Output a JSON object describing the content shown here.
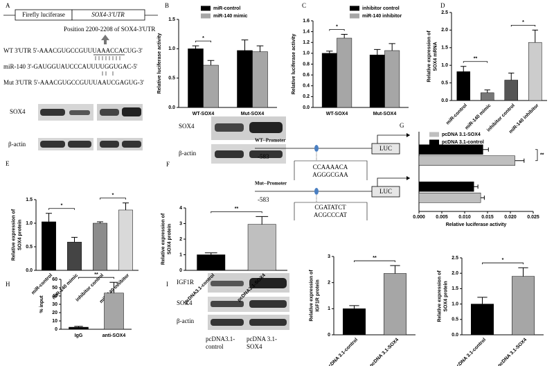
{
  "panel_labels": [
    "A",
    "B",
    "C",
    "D",
    "E",
    "F",
    "G",
    "H",
    "I"
  ],
  "construct": {
    "left": "Firefly luciferase",
    "right": "SOX4-3'UTR",
    "position": "Position 2200-2208 of SOX4-3'UTR",
    "sequences": [
      "WT 3'UTR 5'-AAACGUGCCGUUUAAACCACUG-3'",
      "miR-140   3'-GAUGGUAUCCCAUUUUGGUGAC-5'",
      "Mut 3'UTR 5'-AAACGUGCCGUUUAAUCGAGUG-3'"
    ]
  },
  "blots": {
    "e": [
      "SOX4",
      "β-actin"
    ],
    "f": [
      "SOX4",
      "β-actin"
    ],
    "i": {
      "rows": [
        "IGF1R",
        "SOX4",
        "β-actin"
      ],
      "lanes": [
        [
          "pcDNA3.1-",
          "control"
        ],
        [
          "pcDNA 3.1-",
          "SOX4"
        ]
      ]
    }
  },
  "promoter": {
    "start": [
      "-583",
      "-583"
    ],
    "reporter": [
      "LUC",
      "LUC"
    ],
    "sites": [
      [
        "CCAAAACA",
        "AGGGCGAA"
      ],
      [
        "CGATATCT",
        "ACGCCCAT"
      ]
    ]
  },
  "chart_data": [
    {
      "type": "bar",
      "ylabel": [
        "Relative luciferase activity"
      ],
      "categories": [
        "WT-SOX4",
        "Mut-SOX4"
      ],
      "series": [
        {
          "name": "miR-control",
          "color": "#000000",
          "values": [
            1.0,
            0.97
          ],
          "errors": [
            0.05,
            0.18
          ]
        },
        {
          "name": "miR-140 mimic",
          "color": "#a6a6a6",
          "values": [
            0.72,
            0.95
          ],
          "errors": [
            0.08,
            0.1
          ]
        }
      ],
      "ylim": [
        0,
        1.5
      ],
      "yticks": [
        {
          "value": 0,
          "label": "0.0"
        },
        0.5,
        {
          "value": 1,
          "label": "1.0"
        },
        1.5
      ],
      "legend": "top",
      "comparisons": [
        {
          "text": "*",
          "from": [
            0,
            0
          ],
          "to": [
            0,
            1
          ]
        }
      ]
    },
    {
      "type": "bar",
      "ylabel": [
        "Relative luciferase activity"
      ],
      "categories": [
        "WT-SOX4",
        "Mut-SOX4"
      ],
      "series": [
        {
          "name": "inhibitor control",
          "color": "#000000",
          "values": [
            1.0,
            0.97
          ],
          "errors": [
            0.04,
            0.1
          ]
        },
        {
          "name": "miR-140 inhibitor",
          "color": "#a6a6a6",
          "values": [
            1.28,
            1.05
          ],
          "errors": [
            0.07,
            0.13
          ]
        }
      ],
      "ylim": [
        0,
        1.6
      ],
      "yticks": [
        {
          "value": 0,
          "label": "0.0"
        },
        0.2,
        0.4,
        0.6,
        0.8,
        {
          "value": 1,
          "label": "1.0"
        },
        1.2,
        1.4,
        1.6
      ],
      "legend": "top",
      "comparisons": [
        {
          "text": "*",
          "from": [
            0,
            0
          ],
          "to": [
            0,
            1
          ]
        }
      ]
    },
    {
      "type": "bar",
      "ylabel": [
        "Relative expression of",
        "SOX4 mRNA"
      ],
      "categories": [
        "miR-control",
        "miR-140 mimic",
        "inhibitor control",
        "miR-140 inhibitor"
      ],
      "series": [
        {
          "colors": [
            "#000000",
            "#777777",
            "#555555",
            "#cccccc"
          ],
          "values": [
            0.82,
            0.22,
            0.58,
            1.65
          ],
          "errors": [
            0.15,
            0.08,
            0.2,
            0.35
          ]
        }
      ],
      "ylim": [
        0,
        2.5
      ],
      "yticks": [
        {
          "value": 0,
          "label": "0.0"
        },
        0.5,
        {
          "value": 1,
          "label": "1.0"
        },
        1.5,
        {
          "value": 2,
          "label": "2.0"
        },
        2.5
      ],
      "comparisons": [
        {
          "text": "**",
          "from": [
            0,
            0
          ],
          "to": [
            1,
            0
          ]
        },
        {
          "text": "*",
          "from": [
            2,
            0
          ],
          "to": [
            3,
            0
          ]
        }
      ]
    },
    {
      "type": "bar",
      "ylabel": [
        "Relative expression of",
        "SOX4 protein"
      ],
      "categories": [
        "miR-control",
        "miR-140 mimic",
        "inhibitor control",
        "miR-140 inhibitor"
      ],
      "series": [
        {
          "colors": [
            "#000000",
            "#444444",
            "#8c8c8c",
            "#d9d9d9"
          ],
          "values": [
            1.03,
            0.6,
            1.0,
            1.28
          ],
          "errors": [
            0.18,
            0.1,
            0.03,
            0.15
          ]
        }
      ],
      "ylim": [
        0,
        1.5
      ],
      "yticks": [
        {
          "value": 0,
          "label": "0.0"
        },
        0.5,
        {
          "value": 1,
          "label": "1.0"
        },
        1.5
      ],
      "comparisons": [
        {
          "text": "*",
          "from": [
            0,
            0
          ],
          "to": [
            1,
            0
          ]
        },
        {
          "text": "*",
          "from": [
            2,
            0
          ],
          "to": [
            3,
            0
          ]
        }
      ]
    },
    {
      "type": "bar",
      "ylabel": [
        "Relative expression of",
        "SOX4 protein"
      ],
      "categories": [
        "pcDNA3.1-control",
        "pcDNA3.1-SOX4"
      ],
      "series": [
        {
          "colors": [
            "#000000",
            "#bfbfbf"
          ],
          "values": [
            1.0,
            2.95
          ],
          "errors": [
            0.12,
            0.5
          ]
        }
      ],
      "ylim": [
        0,
        4
      ],
      "yticks": [
        0,
        1,
        2,
        3,
        4
      ],
      "comparisons": [
        {
          "text": "**",
          "from": [
            0,
            0
          ],
          "to": [
            1,
            0
          ]
        }
      ]
    },
    {
      "type": "barh",
      "xlabel": "Relative luciferase activity",
      "categories": [
        "WT--Promoter",
        "Mut--Promoter"
      ],
      "series": [
        {
          "name": "pcDNA 3.1-SOX4",
          "color": "#bfbfbf",
          "values": [
            0.021,
            0.0135
          ],
          "errors": [
            0.002,
            0.0008
          ]
        },
        {
          "name": "pcDNA 3.1-control",
          "color": "#000000",
          "values": [
            0.014,
            0.012
          ],
          "errors": [
            0.0012,
            0.0009
          ]
        }
      ],
      "xlim": [
        0,
        0.025
      ],
      "xticks": [
        {
          "value": 0,
          "label": "0.000"
        },
        {
          "value": 0.005,
          "label": "0.005"
        },
        {
          "value": 0.01,
          "label": "0.010"
        },
        {
          "value": 0.015,
          "label": "0.015"
        },
        {
          "value": 0.02,
          "label": "0.020"
        },
        {
          "value": 0.025,
          "label": "0.025"
        }
      ],
      "legend": "top",
      "comparisons": [
        {
          "text": "**",
          "from": [
            0,
            0
          ],
          "to": [
            0,
            1
          ]
        }
      ]
    },
    {
      "type": "bar",
      "ylabel": [
        "% input"
      ],
      "categories": [
        "IgG",
        "anti-SOX4"
      ],
      "series": [
        {
          "colors": [
            "#000000",
            "#a6a6a6"
          ],
          "values": [
            2.5,
            43.5
          ],
          "errors": [
            1,
            13
          ]
        }
      ],
      "ylim": [
        0,
        60
      ],
      "yticks": [
        0,
        10,
        20,
        30,
        40,
        50,
        60
      ],
      "comparisons": [
        {
          "text": "**",
          "from": [
            0,
            0
          ],
          "to": [
            1,
            0
          ]
        }
      ]
    },
    {
      "type": "bar",
      "ylabel": [
        "Relative expression of",
        "IGF1R protein"
      ],
      "categories": [
        "pcDNA 3.1-control",
        "pcDNA 3.1-SOX4"
      ],
      "series": [
        {
          "colors": [
            "#000000",
            "#a6a6a6"
          ],
          "values": [
            1.0,
            2.35
          ],
          "errors": [
            0.12,
            0.3
          ]
        }
      ],
      "ylim": [
        0,
        3
      ],
      "yticks": [
        0,
        1,
        2,
        3
      ],
      "comparisons": [
        {
          "text": "**",
          "from": [
            0,
            0
          ],
          "to": [
            1,
            0
          ]
        }
      ]
    },
    {
      "type": "bar",
      "ylabel": [
        "Relative expression of",
        "SOX4 protein"
      ],
      "categories": [
        "pcDNA 3.1-control",
        "pcDNA 3.1-SOX4"
      ],
      "series": [
        {
          "colors": [
            "#000000",
            "#a6a6a6"
          ],
          "values": [
            1.0,
            1.9
          ],
          "errors": [
            0.22,
            0.28
          ]
        }
      ],
      "ylim": [
        0,
        2.5
      ],
      "yticks": [
        {
          "value": 0,
          "label": "0.0"
        },
        0.5,
        {
          "value": 1,
          "label": "1.0"
        },
        1.5,
        {
          "value": 2,
          "label": "2.0"
        },
        2.5
      ],
      "comparisons": [
        {
          "text": "*",
          "from": [
            0,
            0
          ],
          "to": [
            1,
            0
          ]
        }
      ]
    }
  ]
}
